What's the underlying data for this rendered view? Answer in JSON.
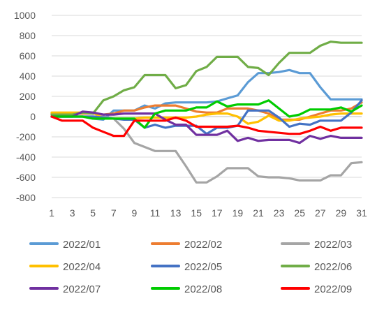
{
  "chart_data": {
    "type": "line",
    "title": "",
    "xlabel": "",
    "ylabel": "",
    "x": [
      1,
      2,
      3,
      4,
      5,
      6,
      7,
      8,
      9,
      10,
      11,
      12,
      13,
      14,
      15,
      16,
      17,
      18,
      19,
      20,
      21,
      22,
      23,
      24,
      25,
      26,
      27,
      28,
      29,
      30,
      31
    ],
    "x_tick_labels": [
      "1",
      "3",
      "5",
      "7",
      "9",
      "11",
      "13",
      "15",
      "17",
      "19",
      "21",
      "23",
      "25",
      "27",
      "29",
      "31"
    ],
    "ylim": [
      -800,
      1000
    ],
    "y_ticks": [
      -800,
      -600,
      -400,
      -200,
      0,
      200,
      400,
      600,
      800,
      1000
    ],
    "grid": true,
    "legend_position": "bottom",
    "series": [
      {
        "name": "2022/01",
        "color": "#5b9bd5",
        "values": [
          0,
          0,
          0,
          0,
          -20,
          -30,
          60,
          60,
          60,
          110,
          80,
          130,
          140,
          140,
          140,
          140,
          150,
          180,
          210,
          340,
          430,
          430,
          440,
          460,
          430,
          430,
          290,
          170,
          170,
          170,
          170
        ]
      },
      {
        "name": "2022/02",
        "color": "#ed7d31",
        "values": [
          30,
          30,
          30,
          30,
          30,
          20,
          30,
          60,
          60,
          90,
          110,
          110,
          110,
          80,
          50,
          40,
          40,
          80,
          80,
          80,
          60,
          30,
          -30,
          -30,
          -30,
          0,
          30,
          60,
          60,
          80,
          140
        ]
      },
      {
        "name": "2022/03",
        "color": "#a5a5a5",
        "values": [
          0,
          0,
          0,
          0,
          0,
          0,
          -20,
          -120,
          -260,
          -300,
          -340,
          -340,
          -340,
          -490,
          -650,
          -650,
          -590,
          -510,
          -510,
          -510,
          -590,
          -600,
          -600,
          -610,
          -630,
          -630,
          -630,
          -580,
          -580,
          -460,
          -450
        ]
      },
      {
        "name": "2022/04",
        "color": "#ffc000",
        "values": [
          40,
          40,
          40,
          40,
          40,
          -20,
          -20,
          -20,
          -20,
          -10,
          -10,
          -10,
          -10,
          -10,
          0,
          20,
          30,
          30,
          0,
          -70,
          -50,
          10,
          -40,
          -40,
          -20,
          -10,
          0,
          20,
          30,
          30,
          30
        ]
      },
      {
        "name": "2022/05",
        "color": "#4472c4",
        "values": [
          0,
          0,
          0,
          0,
          0,
          -10,
          -20,
          -30,
          -30,
          -110,
          -80,
          -110,
          -90,
          -90,
          -90,
          -170,
          -110,
          -110,
          -90,
          60,
          60,
          60,
          -10,
          -100,
          -70,
          -80,
          -40,
          -40,
          -40,
          40,
          160
        ]
      },
      {
        "name": "2022/06",
        "color": "#70ad47",
        "values": [
          20,
          20,
          20,
          40,
          30,
          160,
          200,
          260,
          290,
          410,
          410,
          410,
          280,
          310,
          450,
          490,
          590,
          590,
          590,
          490,
          480,
          410,
          530,
          630,
          630,
          630,
          700,
          740,
          730,
          730,
          730
        ]
      },
      {
        "name": "2022/07",
        "color": "#7030a0",
        "values": [
          0,
          0,
          0,
          50,
          40,
          20,
          20,
          30,
          30,
          30,
          30,
          -30,
          -80,
          -80,
          -180,
          -180,
          -180,
          -140,
          -240,
          -210,
          -240,
          -230,
          -230,
          -230,
          -260,
          -190,
          -220,
          -190,
          -210,
          -210,
          -210
        ]
      },
      {
        "name": "2022/08",
        "color": "#00cc00",
        "values": [
          0,
          0,
          0,
          0,
          -20,
          -20,
          -20,
          -20,
          -20,
          -110,
          30,
          60,
          60,
          60,
          90,
          90,
          150,
          100,
          120,
          120,
          120,
          160,
          80,
          0,
          20,
          70,
          70,
          70,
          90,
          50,
          110
        ]
      },
      {
        "name": "2022/09",
        "color": "#ff0000",
        "values": [
          0,
          -40,
          -40,
          -40,
          -110,
          -150,
          -190,
          -190,
          -40,
          -40,
          -40,
          -40,
          -10,
          -40,
          -100,
          -100,
          -100,
          -100,
          -90,
          -110,
          -140,
          -150,
          -160,
          -170,
          -170,
          -140,
          -100,
          -140,
          -110,
          -110,
          -110
        ]
      }
    ]
  }
}
